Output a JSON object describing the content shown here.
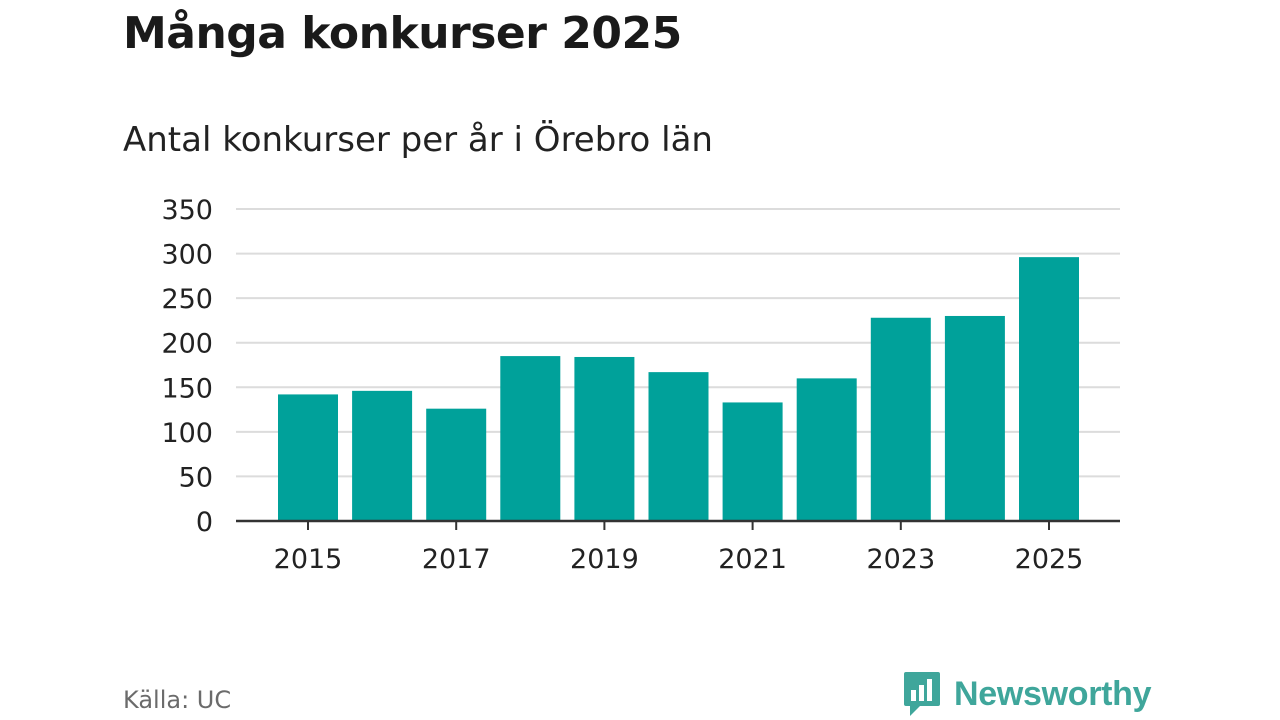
{
  "header": {
    "title": "Många konkurser 2025",
    "subtitle": "Antal konkurser per år i Örebro län"
  },
  "footer": {
    "source": "Källa: UC",
    "brand": "Newsworthy"
  },
  "colors": {
    "bar": "#00a19a",
    "grid": "#dcdcdc",
    "axis": "#333333",
    "brand": "#3fa69b"
  },
  "chart_data": {
    "type": "bar",
    "title": "Antal konkurser per år i Örebro län",
    "xlabel": "",
    "ylabel": "",
    "categories": [
      "2015",
      "2016",
      "2017",
      "2018",
      "2019",
      "2020",
      "2021",
      "2022",
      "2023",
      "2024",
      "2025"
    ],
    "values": [
      142,
      146,
      126,
      185,
      184,
      167,
      133,
      160,
      228,
      230,
      296
    ],
    "ylim": [
      0,
      350
    ],
    "yticks": [
      "0",
      "50",
      "100",
      "150",
      "200",
      "250",
      "300",
      "350"
    ],
    "xtick_labels": [
      "2015",
      "2017",
      "2019",
      "2021",
      "2023",
      "2025"
    ],
    "grid": true,
    "legend": "none"
  }
}
